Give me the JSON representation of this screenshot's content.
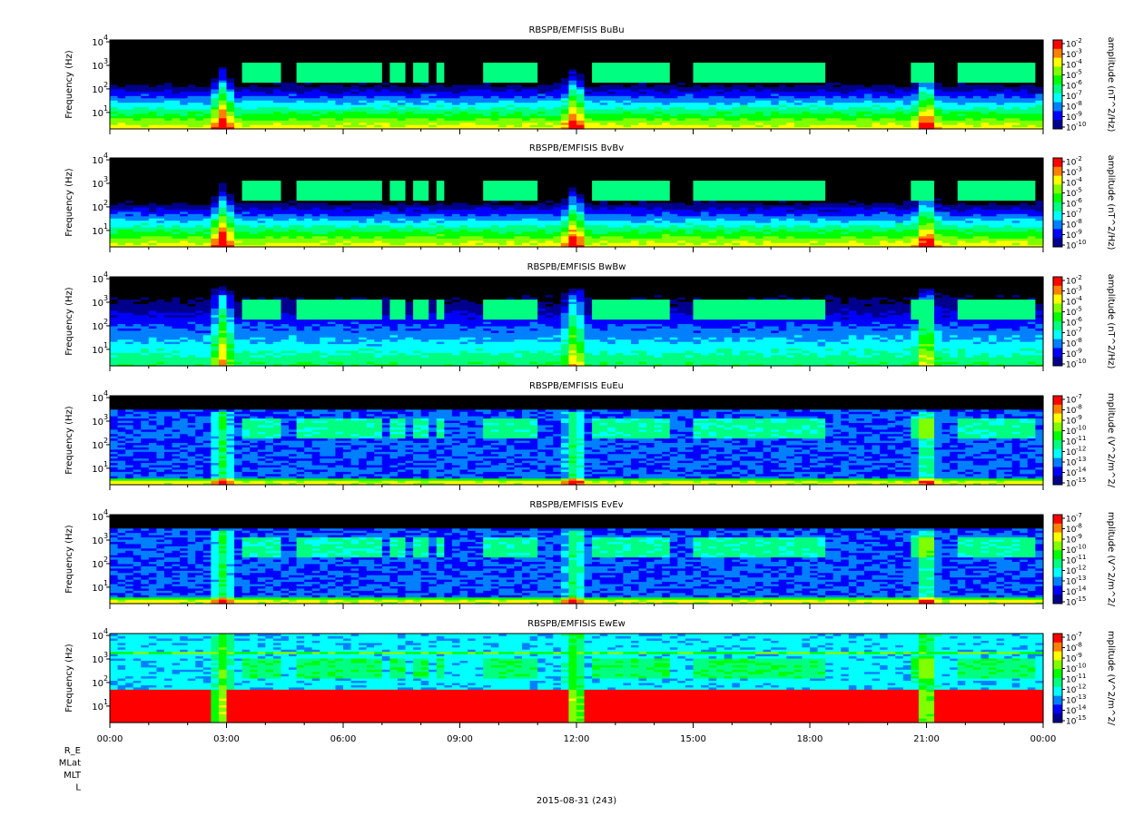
{
  "figure": {
    "date_label": "2015-08-31 (243)",
    "ephemeris_labels": [
      "R_E",
      "MLat",
      "MLT",
      "L"
    ]
  },
  "chart_data": {
    "type": "heatmap",
    "x_tick_labels": [
      "00:00",
      "03:00",
      "06:00",
      "09:00",
      "12:00",
      "15:00",
      "18:00",
      "21:00",
      "00:00"
    ],
    "x_range_hours": [
      0,
      24
    ],
    "y_scale": "log",
    "y_range_hz": [
      2,
      12000
    ],
    "colormap": [
      "#00008c",
      "#0000ff",
      "#0080ff",
      "#00ffff",
      "#00ff80",
      "#00ff00",
      "#80ff00",
      "#ffff00",
      "#ff8000",
      "#ff0000"
    ],
    "panels": [
      {
        "title": "RBSPB/EMFISIS  BuBu",
        "ylabel": "Frequency (Hz)",
        "y_ticks": [
          "10",
          "10",
          "10",
          "10"
        ],
        "y_tick_exps": [
          "1",
          "2",
          "3",
          "4"
        ],
        "colorbar_label": "amplitude (nT^2/Hz)",
        "colorbar_ticks": [
          "10",
          "10",
          "10",
          "10",
          "10",
          "10",
          "10",
          "10",
          "10"
        ],
        "colorbar_exps": [
          "-2",
          "-3",
          "-4",
          "-5",
          "-6",
          "-7",
          "-8",
          "-9",
          "-10"
        ],
        "kind": "B"
      },
      {
        "title": "RBSPB/EMFISIS  BvBv",
        "ylabel": "Frequency (Hz)",
        "y_ticks": [
          "10",
          "10",
          "10",
          "10"
        ],
        "y_tick_exps": [
          "1",
          "2",
          "3",
          "4"
        ],
        "colorbar_label": "amplitude (nT^2/Hz)",
        "colorbar_ticks": [
          "10",
          "10",
          "10",
          "10",
          "10",
          "10",
          "10",
          "10",
          "10"
        ],
        "colorbar_exps": [
          "-2",
          "-3",
          "-4",
          "-5",
          "-6",
          "-7",
          "-8",
          "-9",
          "-10"
        ],
        "kind": "B"
      },
      {
        "title": "RBSPB/EMFISIS  BwBw",
        "ylabel": "Frequency (Hz)",
        "y_ticks": [
          "10",
          "10",
          "10",
          "10"
        ],
        "y_tick_exps": [
          "1",
          "2",
          "3",
          "4"
        ],
        "colorbar_label": "amplitude (nT^2/Hz)",
        "colorbar_ticks": [
          "10",
          "10",
          "10",
          "10",
          "10",
          "10",
          "10",
          "10",
          "10"
        ],
        "colorbar_exps": [
          "-2",
          "-3",
          "-4",
          "-5",
          "-6",
          "-7",
          "-8",
          "-9",
          "-10"
        ],
        "kind": "Bw"
      },
      {
        "title": "RBSPB/EMFISIS  EuEu",
        "ylabel": "Frequency (Hz)",
        "y_ticks": [
          "10",
          "10",
          "10",
          "10"
        ],
        "y_tick_exps": [
          "1",
          "2",
          "3",
          "4"
        ],
        "colorbar_label": "mplitude (V^2/m^2/",
        "colorbar_ticks": [
          "10",
          "10",
          "10",
          "10",
          "10",
          "10",
          "10",
          "10",
          "10"
        ],
        "colorbar_exps": [
          "-7",
          "-8",
          "-9",
          "-10",
          "-11",
          "-12",
          "-13",
          "-14",
          "-15"
        ],
        "kind": "E"
      },
      {
        "title": "RBSPB/EMFISIS  EvEv",
        "ylabel": "Frequency (Hz)",
        "y_ticks": [
          "10",
          "10",
          "10",
          "10"
        ],
        "y_tick_exps": [
          "1",
          "2",
          "3",
          "4"
        ],
        "colorbar_label": "mplitude (V^2/m^2/",
        "colorbar_ticks": [
          "10",
          "10",
          "10",
          "10",
          "10",
          "10",
          "10",
          "10",
          "10"
        ],
        "colorbar_exps": [
          "-7",
          "-8",
          "-9",
          "-10",
          "-11",
          "-12",
          "-13",
          "-14",
          "-15"
        ],
        "kind": "E"
      },
      {
        "title": "RBSPB/EMFISIS  EwEw",
        "ylabel": "Frequency (Hz)",
        "y_ticks": [
          "10",
          "10",
          "10",
          "10"
        ],
        "y_tick_exps": [
          "1",
          "2",
          "3",
          "4"
        ],
        "colorbar_label": "mplitude (V^2/m^2/",
        "colorbar_ticks": [
          "10",
          "10",
          "10",
          "10",
          "10",
          "10",
          "10",
          "10",
          "10"
        ],
        "colorbar_exps": [
          "-7",
          "-8",
          "-9",
          "-10",
          "-11",
          "-12",
          "-13",
          "-14",
          "-15"
        ],
        "kind": "Ew"
      }
    ]
  }
}
